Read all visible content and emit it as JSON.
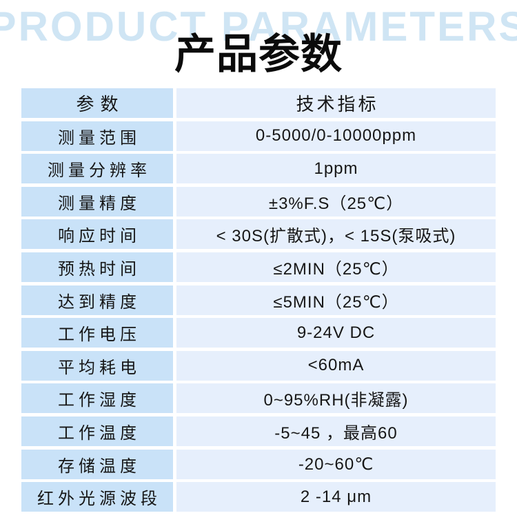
{
  "header": {
    "watermark": "PRODUCT PARAMETERS",
    "title": "产品参数"
  },
  "table": {
    "columns": [
      "参数",
      "技术指标"
    ],
    "rows": [
      {
        "param": "测量范围",
        "value": "0-5000/0-10000ppm"
      },
      {
        "param": "测量分辨率",
        "value": "1ppm"
      },
      {
        "param": "测量精度",
        "value": "±3%F.S（25℃）"
      },
      {
        "param": "响应时间",
        "value": "< 30S(扩散式)，< 15S(泵吸式)"
      },
      {
        "param": "预热时间",
        "value": "≤2MIN（25℃）"
      },
      {
        "param": "达到精度",
        "value": "≤5MIN（25℃）"
      },
      {
        "param": "工作电压",
        "value": "9-24V DC"
      },
      {
        "param": "平均耗电",
        "value": "<60mA"
      },
      {
        "param": "工作湿度",
        "value": "0~95%RH(非凝露)"
      },
      {
        "param": "工作温度",
        "value": "-5~45 ，最高60"
      },
      {
        "param": "存储温度",
        "value": "-20~60℃"
      },
      {
        "param": "红外光源波段",
        "value": "2 -14 μm"
      }
    ]
  },
  "colors": {
    "watermark": "#cfe5f4",
    "left_cell": "#c9e2f8",
    "right_cell": "#e6effc",
    "text": "#161616"
  }
}
